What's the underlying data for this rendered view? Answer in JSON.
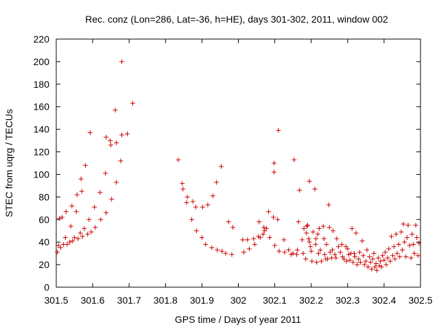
{
  "chart_data": {
    "type": "scatter",
    "title": "Rec. conz (Lon=286, Lat=-36, h=HE), days 301-302, 2011, window 002",
    "xlabel": "GPS time / Days of year 2011",
    "ylabel": "STEC from uqrg / TECUs",
    "xlim": [
      301.5,
      302.5
    ],
    "ylim": [
      0,
      220
    ],
    "xticks": [
      301.5,
      301.6,
      301.7,
      301.8,
      301.9,
      302,
      302.1,
      302.2,
      302.3,
      302.4,
      302.5
    ],
    "xtick_labels": [
      "301.5",
      "301.6",
      "301.7",
      "301.8",
      "301.9",
      "302",
      "302.1",
      "302.2",
      "302.3",
      "302.4",
      "302.5"
    ],
    "yticks": [
      0,
      20,
      40,
      60,
      80,
      100,
      120,
      140,
      160,
      180,
      200,
      220
    ],
    "ytick_labels": [
      "0",
      "20",
      "40",
      "60",
      "80",
      "100",
      "120",
      "140",
      "160",
      "180",
      "200",
      "220"
    ],
    "grid": false,
    "marker": "plus",
    "color": "#cc0000",
    "points": [
      [
        301.503,
        31
      ],
      [
        301.506,
        37
      ],
      [
        301.509,
        61
      ],
      [
        301.512,
        35
      ],
      [
        301.516,
        62
      ],
      [
        301.52,
        38
      ],
      [
        301.525,
        44
      ],
      [
        301.527,
        67
      ],
      [
        301.53,
        38
      ],
      [
        301.537,
        40
      ],
      [
        301.54,
        54
      ],
      [
        301.543,
        72
      ],
      [
        301.545,
        41
      ],
      [
        301.55,
        44
      ],
      [
        301.555,
        67
      ],
      [
        301.557,
        82
      ],
      [
        301.56,
        43
      ],
      [
        301.566,
        48
      ],
      [
        301.568,
        96
      ],
      [
        301.57,
        85
      ],
      [
        301.572,
        45
      ],
      [
        301.577,
        52
      ],
      [
        301.58,
        108
      ],
      [
        301.586,
        47
      ],
      [
        301.59,
        60
      ],
      [
        301.593,
        137
      ],
      [
        301.596,
        49
      ],
      [
        301.605,
        71
      ],
      [
        301.607,
        53
      ],
      [
        301.62,
        84
      ],
      [
        301.622,
        60
      ],
      [
        301.635,
        101
      ],
      [
        301.637,
        66
      ],
      [
        301.637,
        133
      ],
      [
        301.648,
        130
      ],
      [
        301.65,
        126
      ],
      [
        301.652,
        78
      ],
      [
        301.662,
        157
      ],
      [
        301.665,
        128
      ],
      [
        301.665,
        93
      ],
      [
        301.677,
        112
      ],
      [
        301.68,
        200
      ],
      [
        301.68,
        135
      ],
      [
        301.695,
        136
      ],
      [
        301.71,
        163
      ],
      [
        301.835,
        113
      ],
      [
        301.846,
        92
      ],
      [
        301.848,
        87
      ],
      [
        301.858,
        75
      ],
      [
        301.86,
        80
      ],
      [
        301.872,
        60
      ],
      [
        301.875,
        76
      ],
      [
        301.883,
        71
      ],
      [
        301.885,
        50
      ],
      [
        301.9,
        44
      ],
      [
        301.902,
        71
      ],
      [
        301.91,
        38
      ],
      [
        301.916,
        73
      ],
      [
        301.927,
        35
      ],
      [
        301.93,
        81
      ],
      [
        301.94,
        93
      ],
      [
        301.942,
        33
      ],
      [
        301.953,
        107
      ],
      [
        301.955,
        32
      ],
      [
        301.965,
        30
      ],
      [
        301.973,
        58
      ],
      [
        301.982,
        29
      ],
      [
        301.985,
        53
      ],
      [
        302.012,
        42
      ],
      [
        302.015,
        31
      ],
      [
        302.025,
        42
      ],
      [
        302.03,
        34
      ],
      [
        302.042,
        43
      ],
      [
        302.045,
        38
      ],
      [
        302.055,
        45
      ],
      [
        302.057,
        58
      ],
      [
        302.06,
        44
      ],
      [
        302.068,
        47
      ],
      [
        302.07,
        53
      ],
      [
        302.072,
        50
      ],
      [
        302.077,
        52
      ],
      [
        302.083,
        67
      ],
      [
        302.086,
        44
      ],
      [
        302.096,
        62
      ],
      [
        302.098,
        110
      ],
      [
        302.098,
        102
      ],
      [
        302.1,
        37
      ],
      [
        302.108,
        60
      ],
      [
        302.11,
        139
      ],
      [
        302.112,
        32
      ],
      [
        302.125,
        42
      ],
      [
        302.127,
        31
      ],
      [
        302.138,
        33
      ],
      [
        302.145,
        29
      ],
      [
        302.15,
        30
      ],
      [
        302.153,
        113
      ],
      [
        302.16,
        29
      ],
      [
        302.162,
        33
      ],
      [
        302.165,
        58
      ],
      [
        302.168,
        86
      ],
      [
        302.175,
        42
      ],
      [
        302.178,
        30
      ],
      [
        302.18,
        52
      ],
      [
        302.185,
        25
      ],
      [
        302.187,
        48
      ],
      [
        302.188,
        54
      ],
      [
        302.19,
        55
      ],
      [
        302.193,
        43
      ],
      [
        302.195,
        40
      ],
      [
        302.195,
        94
      ],
      [
        302.198,
        36
      ],
      [
        302.2,
        32
      ],
      [
        302.202,
        23
      ],
      [
        302.205,
        49
      ],
      [
        302.21,
        87
      ],
      [
        302.212,
        38
      ],
      [
        302.213,
        43
      ],
      [
        302.215,
        22
      ],
      [
        302.218,
        47
      ],
      [
        302.22,
        30
      ],
      [
        302.222,
        52
      ],
      [
        302.225,
        33
      ],
      [
        302.228,
        23
      ],
      [
        302.233,
        54
      ],
      [
        302.235,
        43
      ],
      [
        302.237,
        29
      ],
      [
        302.24,
        25
      ],
      [
        302.242,
        38
      ],
      [
        302.245,
        25
      ],
      [
        302.248,
        73
      ],
      [
        302.25,
        53
      ],
      [
        302.252,
        31
      ],
      [
        302.256,
        26
      ],
      [
        302.258,
        33
      ],
      [
        302.26,
        50
      ],
      [
        302.265,
        29
      ],
      [
        302.268,
        26
      ],
      [
        302.27,
        43
      ],
      [
        302.275,
        36
      ],
      [
        302.28,
        31
      ],
      [
        302.284,
        38
      ],
      [
        302.286,
        27
      ],
      [
        302.29,
        25
      ],
      [
        302.295,
        36
      ],
      [
        302.297,
        23
      ],
      [
        302.3,
        34
      ],
      [
        302.303,
        29
      ],
      [
        302.306,
        24
      ],
      [
        302.309,
        30
      ],
      [
        302.312,
        52
      ],
      [
        302.315,
        22
      ],
      [
        302.318,
        30
      ],
      [
        302.32,
        27
      ],
      [
        302.323,
        48
      ],
      [
        302.326,
        20
      ],
      [
        302.33,
        25
      ],
      [
        302.333,
        31
      ],
      [
        302.335,
        22
      ],
      [
        302.34,
        41
      ],
      [
        302.343,
        28
      ],
      [
        302.346,
        20
      ],
      [
        302.35,
        23
      ],
      [
        302.353,
        33
      ],
      [
        302.356,
        18
      ],
      [
        302.36,
        27
      ],
      [
        302.363,
        22
      ],
      [
        302.366,
        16
      ],
      [
        302.369,
        25
      ],
      [
        302.372,
        30
      ],
      [
        302.375,
        18
      ],
      [
        302.378,
        21
      ],
      [
        302.38,
        15
      ],
      [
        302.384,
        26
      ],
      [
        302.387,
        19
      ],
      [
        302.39,
        23
      ],
      [
        302.393,
        18
      ],
      [
        302.396,
        28
      ],
      [
        302.4,
        24
      ],
      [
        302.403,
        31
      ],
      [
        302.406,
        20
      ],
      [
        302.41,
        26
      ],
      [
        302.413,
        34
      ],
      [
        302.417,
        23
      ],
      [
        302.42,
        45
      ],
      [
        302.424,
        28
      ],
      [
        302.427,
        36
      ],
      [
        302.43,
        25
      ],
      [
        302.433,
        47
      ],
      [
        302.436,
        30
      ],
      [
        302.44,
        38
      ],
      [
        302.443,
        27
      ],
      [
        302.447,
        49
      ],
      [
        302.45,
        33
      ],
      [
        302.453,
        56
      ],
      [
        302.456,
        40
      ],
      [
        302.46,
        27
      ],
      [
        302.463,
        44
      ],
      [
        302.466,
        55
      ],
      [
        302.47,
        37
      ],
      [
        302.474,
        26
      ],
      [
        302.477,
        47
      ],
      [
        302.48,
        38
      ],
      [
        302.483,
        30
      ],
      [
        302.487,
        55
      ],
      [
        302.49,
        44
      ],
      [
        302.493,
        28
      ],
      [
        302.496,
        39
      ]
    ]
  }
}
